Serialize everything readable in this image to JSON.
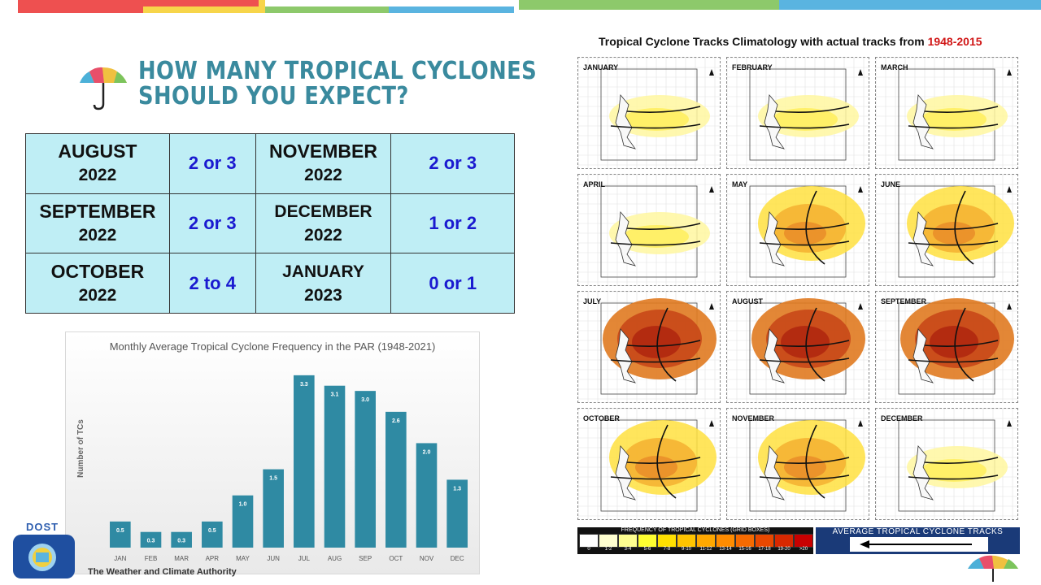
{
  "header": {
    "title_line1": "HOW MANY TROPICAL CYCLONES",
    "title_line2": "SHOULD YOU EXPECT?"
  },
  "forecast_table": {
    "rows": [
      [
        {
          "month": "AUGUST",
          "year": "2022",
          "value": "2 or 3"
        },
        {
          "month": "NOVEMBER",
          "year": "2022",
          "value": "2 or 3"
        }
      ],
      [
        {
          "month": "SEPTEMBER",
          "year": "2022",
          "value": "2 or 3"
        },
        {
          "month": "DECEMBER",
          "year": "2022",
          "value": "1 or 2"
        }
      ],
      [
        {
          "month": "OCTOBER",
          "year": "2022",
          "value": "2 to 4"
        },
        {
          "month": "JANUARY",
          "year": "2023",
          "value": "0 or 1"
        }
      ]
    ]
  },
  "chart_data": {
    "type": "bar",
    "title": "Monthly Average Tropical Cyclone Frequency in the PAR (1948-2021)",
    "ylabel": "Number of TCs",
    "xlabel": "",
    "categories": [
      "JAN",
      "FEB",
      "MAR",
      "APR",
      "MAY",
      "JUN",
      "JUL",
      "AUG",
      "SEP",
      "OCT",
      "NOV",
      "DEC"
    ],
    "values": [
      0.5,
      0.3,
      0.3,
      0.5,
      1.0,
      1.5,
      3.3,
      3.1,
      3.0,
      2.6,
      2.0,
      1.3
    ],
    "data_labels": [
      "0.5",
      "0.3",
      "0.3",
      "0.5",
      "1.0",
      "1.5",
      "3.3",
      "3.1",
      "3.0",
      "2.6",
      "2.0",
      "1.3"
    ],
    "ylim": [
      0,
      3.5
    ],
    "grid": false,
    "bar_color": "#2f8aa3"
  },
  "climatology": {
    "title_prefix": "Tropical Cyclone Tracks Climatology with actual tracks from",
    "title_years": "1948-2015",
    "months": [
      "JANUARY",
      "FEBRUARY",
      "MARCH",
      "APRIL",
      "MAY",
      "JUNE",
      "JULY",
      "AUGUST",
      "SEPTEMBER",
      "OCTOBER",
      "NOVEMBER",
      "DECEMBER"
    ],
    "intensity": [
      1,
      1,
      1,
      1,
      2,
      2,
      3,
      3,
      3,
      2,
      2,
      1
    ],
    "legend_freq_title": "FREQUENCY OF TROPICAL CYCLONES (GRID BOXES)",
    "legend_bins": [
      "0",
      "1-2",
      "3-4",
      "5-6",
      "7-8",
      "9-10",
      "11-12",
      "13-14",
      "15-16",
      "17-18",
      "19-20",
      ">20"
    ],
    "legend_colors": [
      "#ffffff",
      "#ffffd0",
      "#ffff90",
      "#ffff30",
      "#ffe000",
      "#ffc400",
      "#ffa800",
      "#ff8c00",
      "#f56a00",
      "#e84800",
      "#d82800",
      "#c80000"
    ],
    "legend_tracks_title": "AVERAGE TROPICAL CYCLONE TRACKS"
  },
  "footer": {
    "agency_short": "DOST",
    "agency_tagline": "The Weather and Climate Authority"
  },
  "colors": {
    "title": "#3a8a9e",
    "table_bg": "#bfeef5",
    "table_value": "#1a1ad0",
    "bar": "#2f8aa3"
  }
}
